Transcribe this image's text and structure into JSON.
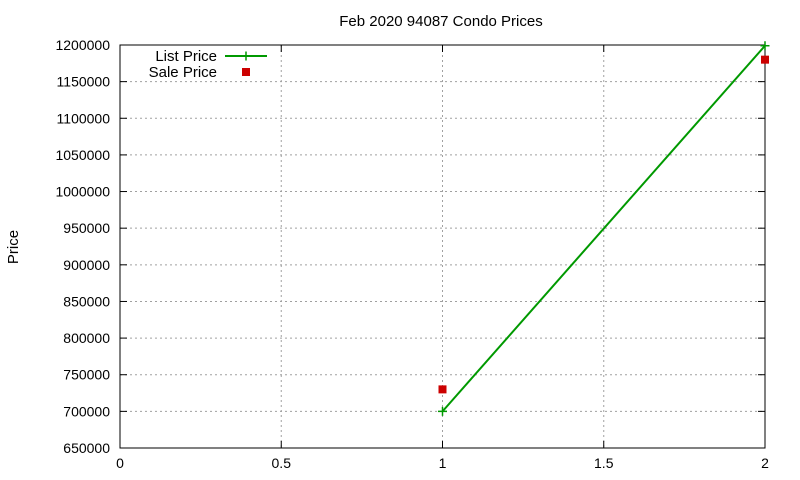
{
  "chart_data": {
    "type": "line",
    "title": "Feb 2020 94087 Condo Prices",
    "xlabel": "",
    "ylabel": "Price",
    "xlim": [
      0,
      2
    ],
    "ylim": [
      650000,
      1200000
    ],
    "x_ticks": [
      0,
      0.5,
      1,
      1.5,
      2
    ],
    "x_tick_labels": [
      "0",
      "0.5",
      "1",
      "1.5",
      "2"
    ],
    "y_ticks": [
      650000,
      700000,
      750000,
      800000,
      850000,
      900000,
      950000,
      1000000,
      1050000,
      1100000,
      1150000,
      1200000
    ],
    "y_tick_labels": [
      "650000",
      "700000",
      "750000",
      "800000",
      "850000",
      "900000",
      "950000",
      "1000000",
      "1050000",
      "1100000",
      "1150000",
      "1200000"
    ],
    "grid": true,
    "legend_position": "top-left",
    "series": [
      {
        "name": "List Price",
        "style": "line+cross",
        "color": "#009900",
        "x": [
          1,
          2
        ],
        "y": [
          700000,
          1199000
        ]
      },
      {
        "name": "Sale Price",
        "style": "square",
        "color": "#cc0000",
        "x": [
          1,
          2
        ],
        "y": [
          730000,
          1180000
        ]
      }
    ]
  }
}
